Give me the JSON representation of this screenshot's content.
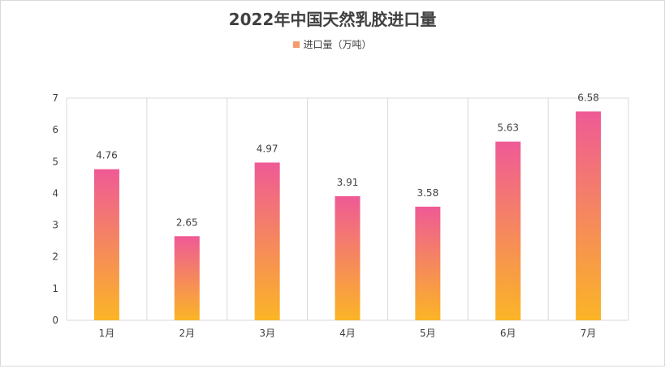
{
  "chart_data": {
    "type": "bar",
    "title": "2022年中国天然乳胶进口量",
    "categories": [
      "1月",
      "2月",
      "3月",
      "4月",
      "5月",
      "6月",
      "7月"
    ],
    "series": [
      {
        "name": "进口量（万吨）",
        "values": [
          4.76,
          2.65,
          4.97,
          3.91,
          3.58,
          5.63,
          6.58
        ]
      }
    ],
    "ylim": [
      0,
      7
    ],
    "yticks": [
      "0",
      "1",
      "2",
      "3",
      "4",
      "5",
      "6",
      "7"
    ],
    "data_labels": [
      "4.76",
      "2.65",
      "4.97",
      "3.91",
      "3.58",
      "5.63",
      "6.58"
    ],
    "grid": "vertical",
    "legend_position": "top",
    "colors": {
      "bar_top": "#ef5a96",
      "bar_bottom": "#fbb526",
      "legend_swatch": "#f39a6e",
      "grid": "#d9d9d9",
      "text": "#404040"
    }
  }
}
